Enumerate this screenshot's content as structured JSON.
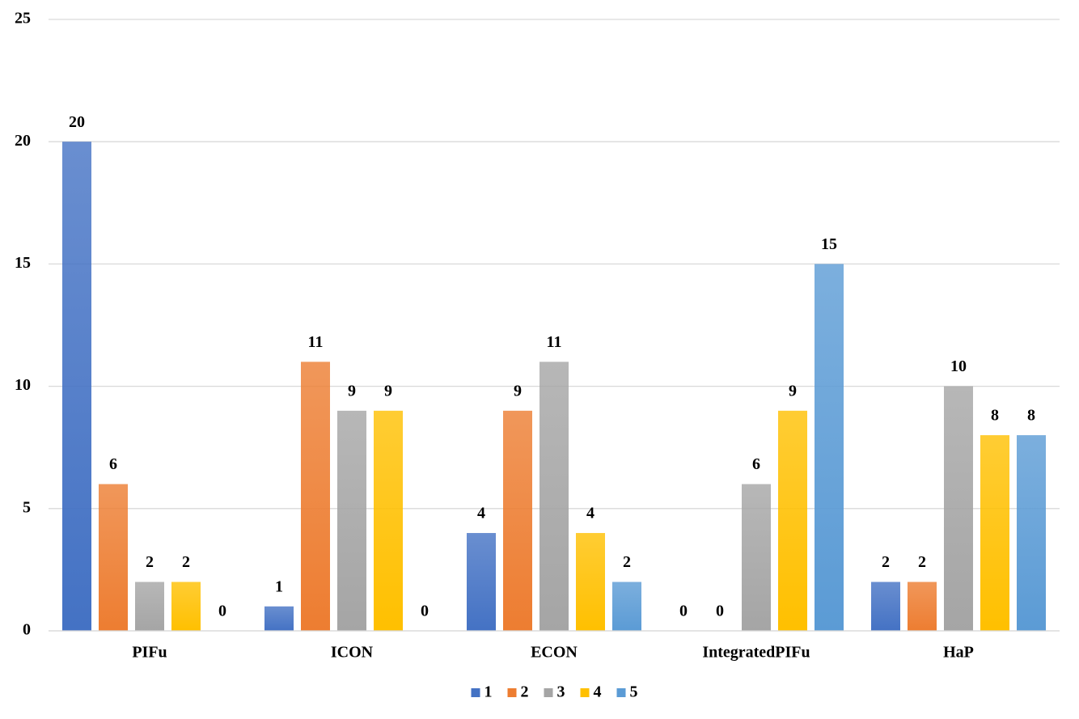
{
  "chart_data": {
    "type": "bar",
    "categories": [
      "PIFu",
      "ICON",
      "ECON",
      "IntegratedPIFu",
      "HaP"
    ],
    "series": [
      {
        "name": "1",
        "color": "#4472c4",
        "values": [
          20,
          1,
          4,
          0,
          2
        ]
      },
      {
        "name": "2",
        "color": "#ed7d31",
        "values": [
          6,
          11,
          9,
          0,
          2
        ]
      },
      {
        "name": "3",
        "color": "#a5a5a5",
        "values": [
          2,
          9,
          11,
          6,
          10
        ]
      },
      {
        "name": "4",
        "color": "#ffc000",
        "values": [
          2,
          9,
          4,
          9,
          8
        ]
      },
      {
        "name": "5",
        "color": "#5b9bd5",
        "values": [
          0,
          0,
          2,
          15,
          8
        ]
      }
    ],
    "ylim": [
      0,
      25
    ],
    "yticks": [
      0,
      5,
      10,
      15,
      20,
      25
    ],
    "grid": true,
    "legend": "bottom"
  }
}
